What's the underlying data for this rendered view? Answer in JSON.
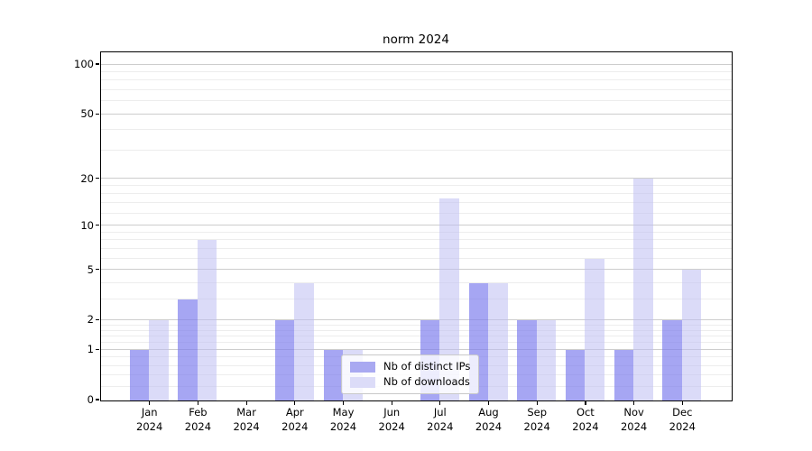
{
  "figure": {
    "background": "#ffffff",
    "frame_color": "#000000",
    "grid_major_color": "#cdcdcd",
    "grid_minor_color": "#ededed"
  },
  "chart_data": {
    "type": "bar",
    "title": "norm 2024",
    "categories": [
      {
        "month": "Jan",
        "year": "2024"
      },
      {
        "month": "Feb",
        "year": "2024"
      },
      {
        "month": "Mar",
        "year": "2024"
      },
      {
        "month": "Apr",
        "year": "2024"
      },
      {
        "month": "May",
        "year": "2024"
      },
      {
        "month": "Jun",
        "year": "2024"
      },
      {
        "month": "Jul",
        "year": "2024"
      },
      {
        "month": "Aug",
        "year": "2024"
      },
      {
        "month": "Sep",
        "year": "2024"
      },
      {
        "month": "Oct",
        "year": "2024"
      },
      {
        "month": "Nov",
        "year": "2024"
      },
      {
        "month": "Dec",
        "year": "2024"
      }
    ],
    "series": [
      {
        "name": "Nb of distinct IPs",
        "key": "distinct-ips",
        "swatch_color": "#a9a9f1",
        "fill_rgba": "rgba(124,124,238,0.68)",
        "values": [
          1,
          3,
          0,
          2,
          1,
          0,
          2,
          4,
          2,
          1,
          1,
          2
        ]
      },
      {
        "name": "Nb of downloads",
        "key": "downloads",
        "swatch_color": "#dcdcf8",
        "fill_rgba": "rgba(189,189,242,0.55)",
        "values": [
          2,
          8,
          0,
          4,
          1,
          0,
          15,
          4,
          2,
          6,
          20,
          5
        ]
      }
    ],
    "y_axis": {
      "scale": "log1p",
      "major_ticks": [
        0,
        1,
        2,
        5,
        10,
        20,
        50,
        100
      ],
      "minor_ticks": [
        0.2,
        0.4,
        0.6,
        0.8,
        1.2,
        1.4,
        1.6,
        1.8,
        3,
        4,
        6,
        7,
        8,
        9,
        12,
        14,
        16,
        18,
        30,
        40,
        60,
        70,
        80,
        90
      ],
      "top_value": 100,
      "ylim": [
        0,
        118
      ]
    },
    "legend": {
      "entries": [
        "Nb of distinct IPs",
        "Nb of downloads"
      ],
      "position": "lower center"
    },
    "grid": true
  }
}
